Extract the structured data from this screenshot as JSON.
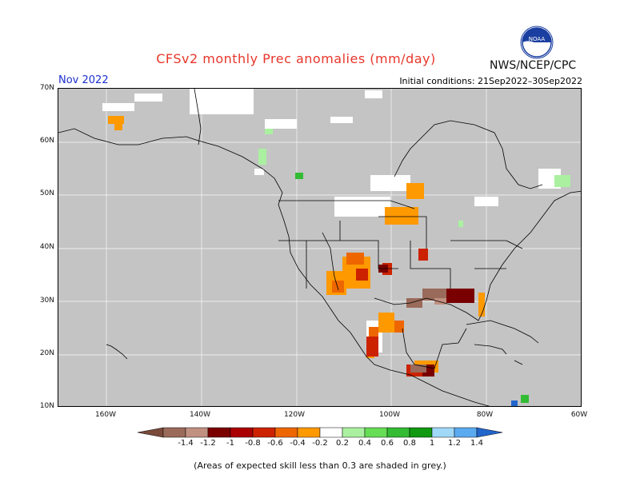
{
  "title": "CFSv2 monthly Prec anomalies (mm/day)",
  "agency": "NWS/NCEP/CPC",
  "logo_text": "NOAA",
  "month": "Nov 2022",
  "initial_conditions": "Initial conditions: 21Sep2022–30Sep2022",
  "lat_labels": [
    "70N",
    "60N",
    "50N",
    "40N",
    "30N",
    "20N",
    "10N"
  ],
  "lon_labels": [
    "160W",
    "140W",
    "120W",
    "100W",
    "80W",
    "60W"
  ],
  "colorbar": {
    "labels": [
      "-1.4",
      "-1.2",
      "-1",
      "-0.8",
      "-0.6",
      "-0.4",
      "-0.2",
      "0.2",
      "0.4",
      "0.6",
      "0.8",
      "1",
      "1.2",
      "1.4"
    ],
    "colors": [
      "#7a4a3a",
      "#9a6a5a",
      "#c09080",
      "#7a0000",
      "#aa0000",
      "#cc2200",
      "#ee6600",
      "#ff9900",
      "#ffffff",
      "#aaf0a0",
      "#66dd55",
      "#33bb33",
      "#119911",
      "#a0d8f8",
      "#5aaaf0",
      "#2266cc"
    ]
  },
  "note": "(Areas of expected skill less than 0.3 are shaded in grey.)",
  "colors": {
    "grey": "#c4c4c4",
    "title": "#e8362b",
    "month": "#1b2fd0",
    "orange": "#ff9900",
    "dark_orange": "#ee6600",
    "red": "#cc2200",
    "dark_red": "#7a0000",
    "brown": "#9a6a5a",
    "light_brown": "#c09080",
    "light_green": "#aaf0a0",
    "green": "#33bb33",
    "blue": "#2266cc"
  }
}
